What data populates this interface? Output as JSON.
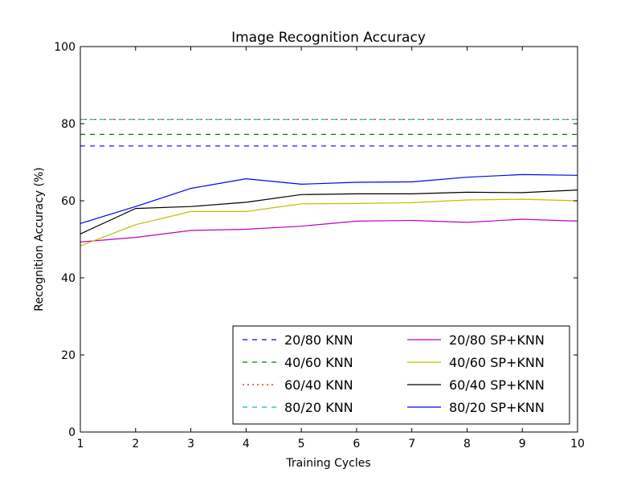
{
  "chart_data": {
    "type": "line",
    "title": "Image Recognition Accuracy",
    "xlabel": "Training Cycles",
    "ylabel": "Recognition Accuracy (%)",
    "xlim": [
      1,
      10
    ],
    "ylim": [
      0,
      100
    ],
    "x_ticks": [
      1,
      2,
      3,
      4,
      5,
      6,
      7,
      8,
      9,
      10
    ],
    "y_ticks": [
      0,
      20,
      40,
      60,
      80,
      100
    ],
    "grid": false,
    "legend_position": "bottom-right",
    "legend_columns": 2,
    "x": [
      1,
      2,
      3,
      4,
      5,
      6,
      7,
      8,
      9,
      10
    ],
    "series": [
      {
        "name": "20/80 KNN",
        "color": "#0000ff",
        "style": "dashed",
        "values": [
          74.2,
          74.2,
          74.2,
          74.2,
          74.2,
          74.2,
          74.2,
          74.2,
          74.2,
          74.2
        ]
      },
      {
        "name": "40/60 KNN",
        "color": "#008000",
        "style": "dashed",
        "values": [
          77.2,
          77.2,
          77.2,
          77.2,
          77.2,
          77.2,
          77.2,
          77.2,
          77.2,
          77.2
        ]
      },
      {
        "name": "60/40 KNN",
        "color": "#ff0000",
        "style": "dotted",
        "values": [
          81.1,
          81.1,
          81.1,
          81.1,
          81.1,
          81.1,
          81.1,
          81.1,
          81.1,
          81.1
        ]
      },
      {
        "name": "80/20 KNN",
        "color": "#00bfbf",
        "style": "dashed",
        "values": [
          81.1,
          81.1,
          81.1,
          81.1,
          81.1,
          81.1,
          81.1,
          81.1,
          81.1,
          81.1
        ]
      },
      {
        "name": "20/80 SP+KNN",
        "color": "#bf00bf",
        "style": "solid",
        "values": [
          49.3,
          50.5,
          52.3,
          52.6,
          53.4,
          54.7,
          54.9,
          54.4,
          55.2,
          54.7
        ]
      },
      {
        "name": "40/60 SP+KNN",
        "color": "#bfbf00",
        "style": "solid",
        "values": [
          48.3,
          53.8,
          57.2,
          57.2,
          59.2,
          59.3,
          59.5,
          60.2,
          60.4,
          60.0
        ]
      },
      {
        "name": "60/40 SP+KNN",
        "color": "#000000",
        "style": "solid",
        "values": [
          51.4,
          58.0,
          58.5,
          59.6,
          61.6,
          61.8,
          61.8,
          62.2,
          62.1,
          62.8
        ]
      },
      {
        "name": "80/20 SP+KNN",
        "color": "#0000ff",
        "style": "solid",
        "values": [
          54.1,
          58.5,
          63.2,
          65.7,
          64.3,
          64.8,
          64.9,
          66.1,
          66.8,
          66.6
        ]
      }
    ]
  }
}
